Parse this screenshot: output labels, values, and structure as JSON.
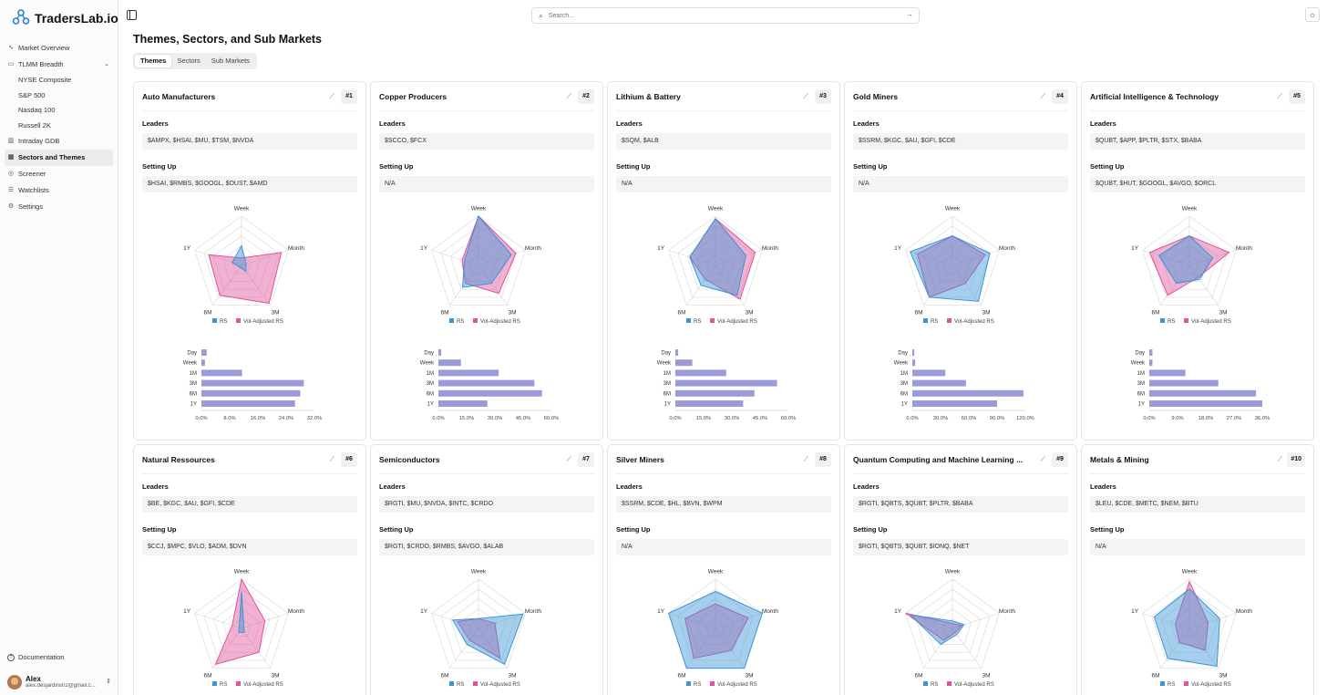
{
  "app": {
    "logo_text": "TradersLab.io",
    "brand_color": "#2a7fd4"
  },
  "sidebar": {
    "items": [
      {
        "label": "Market Overview",
        "icon": "chart-line-icon"
      },
      {
        "label": "TLMM Breadth",
        "icon": "calendar-icon",
        "expanded": true,
        "children": [
          "NYSE Composite",
          "S&P 500",
          "Nasdaq 100",
          "Russell 2K"
        ]
      },
      {
        "label": "Intraday GDB",
        "icon": "bar-chart-icon"
      },
      {
        "label": "Sectors and Themes",
        "icon": "grid-icon",
        "active": true
      },
      {
        "label": "Screener",
        "icon": "filter-icon"
      },
      {
        "label": "Watchlists",
        "icon": "list-icon"
      },
      {
        "label": "Settings",
        "icon": "gear-icon"
      }
    ],
    "documentation": "Documentation",
    "user": {
      "name": "Alex",
      "email": "alex.desjardins02@gmail.c..."
    }
  },
  "search": {
    "placeholder": "Search..."
  },
  "page": {
    "title": "Themes, Sectors, and Sub Markets"
  },
  "tabs": [
    {
      "label": "Themes",
      "active": true
    },
    {
      "label": "Sectors",
      "active": false
    },
    {
      "label": "Sub Markets",
      "active": false
    }
  ],
  "labels": {
    "leaders": "Leaders",
    "setting_up": "Setting Up",
    "rs": "RS",
    "vol_rs": "Vol-Adjusted RS",
    "axes": [
      "Week",
      "Month",
      "3M",
      "6M",
      "1Y"
    ],
    "bar_periods": [
      "Day",
      "Week",
      "1M",
      "3M",
      "6M",
      "1Y"
    ]
  },
  "colors": {
    "rs": "#3a95d8",
    "vol_rs": "#e0529c",
    "bar": "#9b9bd9"
  },
  "cards": [
    {
      "rank": "#1",
      "title": "Auto Manufacturers",
      "leaders": "$AMPX, $HSAI, $MU, $TSM, $NVDA",
      "setting_up": "$HSAI, $RMBS, $GOOGL, $OUST, $AMD",
      "rs": [
        0.4,
        0.1,
        0.15,
        0.05,
        0.2
      ],
      "vol_rs": [
        0.15,
        0.85,
        0.95,
        0.75,
        0.7
      ],
      "bars": [
        1.5,
        1.0,
        11.5,
        29.0,
        28.0,
        26.5
      ],
      "ticks": [
        "0.0%",
        "8.0%",
        "16.0%",
        "24.0%",
        "32.0%"
      ],
      "max": 32
    },
    {
      "rank": "#2",
      "title": "Copper Producers",
      "leaders": "$SCCO, $FCX",
      "setting_up": "N/A",
      "rs": [
        1.0,
        0.7,
        0.45,
        0.55,
        0.3
      ],
      "vol_rs": [
        1.0,
        0.8,
        0.7,
        0.45,
        0.35
      ],
      "bars": [
        1.5,
        12.0,
        32.0,
        51.0,
        55.0,
        26.0
      ],
      "ticks": [
        "0.0%",
        "15.0%",
        "30.0%",
        "45.0%",
        "60.0%"
      ],
      "max": 60
    },
    {
      "rank": "#3",
      "title": "Lithium & Battery",
      "leaders": "$SQM, $ALB",
      "setting_up": "N/A",
      "rs": [
        0.95,
        0.65,
        0.75,
        0.5,
        0.55
      ],
      "vol_rs": [
        0.95,
        0.85,
        0.85,
        0.35,
        0.55
      ],
      "bars": [
        1.5,
        9.0,
        27.0,
        54.0,
        42.0,
        36.0
      ],
      "ticks": [
        "0.0%",
        "15.0%",
        "30.0%",
        "45.0%",
        "60.0%"
      ],
      "max": 60
    },
    {
      "rank": "#4",
      "title": "Gold Miners",
      "leaders": "$SSRM, $KGC, $AU, $GFI, $CDE",
      "setting_up": "N/A",
      "rs": [
        0.6,
        0.8,
        0.9,
        0.8,
        0.9
      ],
      "vol_rs": [
        0.6,
        0.7,
        0.45,
        0.8,
        0.75
      ],
      "bars": [
        2.0,
        3.0,
        35.0,
        57.0,
        118.0,
        90.0
      ],
      "ticks": [
        "0.0%",
        "30.0%",
        "60.0%",
        "90.0%",
        "120.0%"
      ],
      "max": 120
    },
    {
      "rank": "#5",
      "title": "Artificial Intelligence & Technology",
      "leaders": "$QUBT, $APP, $PLTR, $STX, $BABA",
      "setting_up": "$QUBT, $HUT, $GOOGL, $AVGO, $ORCL",
      "rs": [
        0.6,
        0.5,
        0.35,
        0.45,
        0.65
      ],
      "vol_rs": [
        0.6,
        0.85,
        0.3,
        0.75,
        0.85
      ],
      "bars": [
        1.0,
        1.0,
        11.5,
        22.0,
        34.0,
        36.0
      ],
      "ticks": [
        "0.0%",
        "9.0%",
        "18.0%",
        "27.0%",
        "36.0%"
      ],
      "max": 36
    },
    {
      "rank": "#6",
      "title": "Natural Ressources",
      "leaders": "$BE, $KGC, $AU, $GFI, $CDE",
      "setting_up": "$CCJ, $MPC, $VLO, $ADM, $DVN",
      "rs": [
        0.75,
        0.05,
        0.1,
        0.1,
        0.05
      ],
      "vol_rs": [
        1.0,
        0.5,
        0.6,
        0.9,
        0.2
      ],
      "bars": [],
      "ticks": [],
      "max": 1
    },
    {
      "rank": "#7",
      "title": "Semiconductors",
      "leaders": "$RGTI, $MU, $NVDA, $INTC, $CRDO",
      "setting_up": "$RGTI, $CRDO, $RMBS, $AVGO, $ALAB",
      "rs": [
        0.2,
        0.95,
        0.9,
        0.4,
        0.55
      ],
      "vol_rs": [
        0.2,
        0.35,
        0.75,
        0.3,
        0.45
      ],
      "bars": [],
      "ticks": [],
      "max": 1
    },
    {
      "rank": "#8",
      "title": "Silver Miners",
      "leaders": "$SSRM, $CDE, $HL, $BVN, $WPM",
      "setting_up": "N/A",
      "rs": [
        0.75,
        1.0,
        1.0,
        1.0,
        1.0
      ],
      "vol_rs": [
        0.5,
        0.7,
        0.55,
        0.75,
        0.65
      ],
      "bars": [],
      "ticks": [],
      "max": 1
    },
    {
      "rank": "#9",
      "title": "Quantum Computing and Machine Learning ...",
      "leaders": "$RGTI, $QBTS, $QUBT, $PLTR, $BABA",
      "setting_up": "$RGTI, $QBTS, $QUBT, $IONQ, $NET",
      "rs": [
        0.15,
        0.25,
        0.15,
        0.4,
        0.9
      ],
      "vol_rs": [
        0.1,
        0.2,
        0.1,
        0.3,
        1.0
      ],
      "bars": [],
      "ticks": [],
      "max": 1
    },
    {
      "rank": "#10",
      "title": "Metals & Mining",
      "leaders": "$LEU, $CDE, $METC, $NEM, $BTU",
      "setting_up": "N/A",
      "rs": [
        0.8,
        0.65,
        0.95,
        0.75,
        0.75
      ],
      "vol_rs": [
        0.95,
        0.4,
        0.55,
        0.35,
        0.3
      ],
      "bars": [],
      "ticks": [],
      "max": 1
    }
  ]
}
